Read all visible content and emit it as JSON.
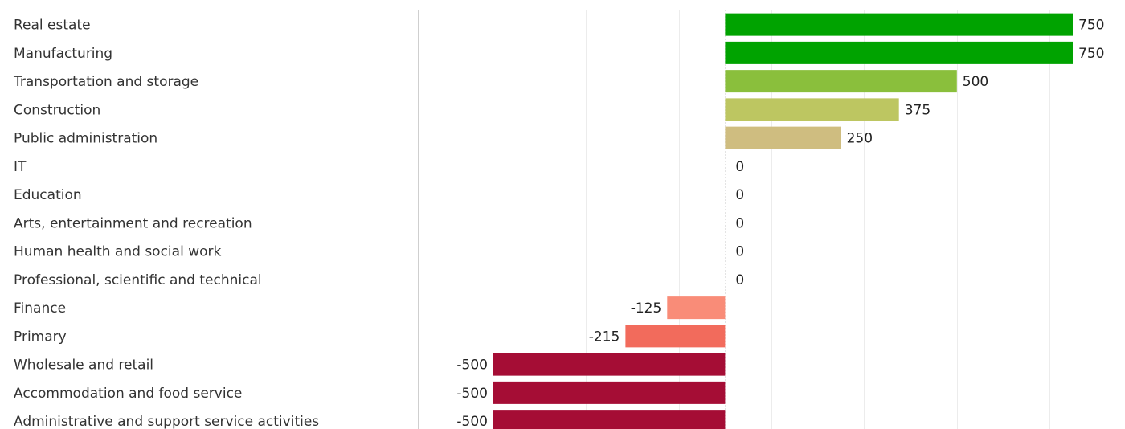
{
  "chart_data": {
    "type": "bar",
    "orientation": "horizontal",
    "categories": [
      "Real estate",
      "Manufacturing",
      "Transportation and storage",
      "Construction",
      "Public administration",
      "IT",
      "Education",
      "Arts, entertainment and recreation",
      "Human health and social work",
      "Professional, scientific and technical",
      "Finance",
      "Primary",
      "Wholesale and retail",
      "Accommodation and food service",
      "Administrative and support service activities"
    ],
    "values": [
      750,
      750,
      500,
      375,
      250,
      0,
      0,
      0,
      0,
      0,
      -125,
      -215,
      -500,
      -500,
      -500
    ],
    "value_labels": [
      "750",
      "750",
      "500",
      "375",
      "250",
      "0",
      "0",
      "0",
      "0",
      "0",
      "-125",
      "-215",
      "-500",
      "-500",
      "-500"
    ],
    "bar_colors": [
      "#00a300",
      "#00a300",
      "#8abf3c",
      "#bdc661",
      "#cfbd80",
      "#ffffff",
      "#ffffff",
      "#ffffff",
      "#ffffff",
      "#ffffff",
      "#f98c78",
      "#f26b5c",
      "#a50d35",
      "#a50d35",
      "#a50d35"
    ],
    "xlim": [
      -500,
      750
    ],
    "gridlines": [
      -300,
      -100,
      100,
      300,
      500,
      700
    ],
    "grid": true,
    "title": "",
    "xlabel": "",
    "ylabel": "",
    "legend": "none"
  }
}
